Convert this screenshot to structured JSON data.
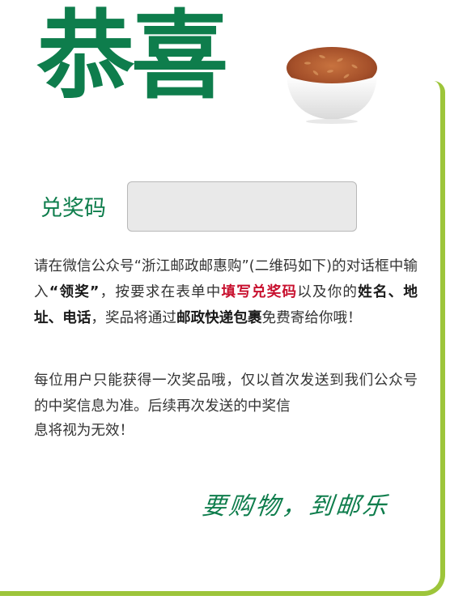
{
  "headline": "恭喜",
  "redeem": {
    "label": "兑奖码",
    "value": ""
  },
  "instructions": {
    "p1_a": "请在微信公众号“浙江邮政邮惠购”(二维码如下)的对话框中输入",
    "p1_keyword": "“领奖”",
    "p1_b": "，按要求在表单中",
    "p1_fill_code": "填写兑奖码",
    "p1_c": "以及你的",
    "p1_fields": "姓名、地址、电话",
    "p1_d": "，奖品将通过",
    "p1_postal": "邮政快递包裹",
    "p1_e": "免费寄给你哦！",
    "p2_a": "每位用户只能获得一次奖品哦，仅以首次发送到我们公众号的中奖信息为准。后续再次发送的中奖信",
    "p2_b": "息将视为无效！"
  },
  "slogan": "要购物，到邮乐",
  "colors": {
    "brand_green": "#0e7d4c",
    "frame_green": "#9dc53a",
    "highlight_red": "#c8102e"
  },
  "icons": {
    "rice_bowl": "rice-bowl-image"
  }
}
